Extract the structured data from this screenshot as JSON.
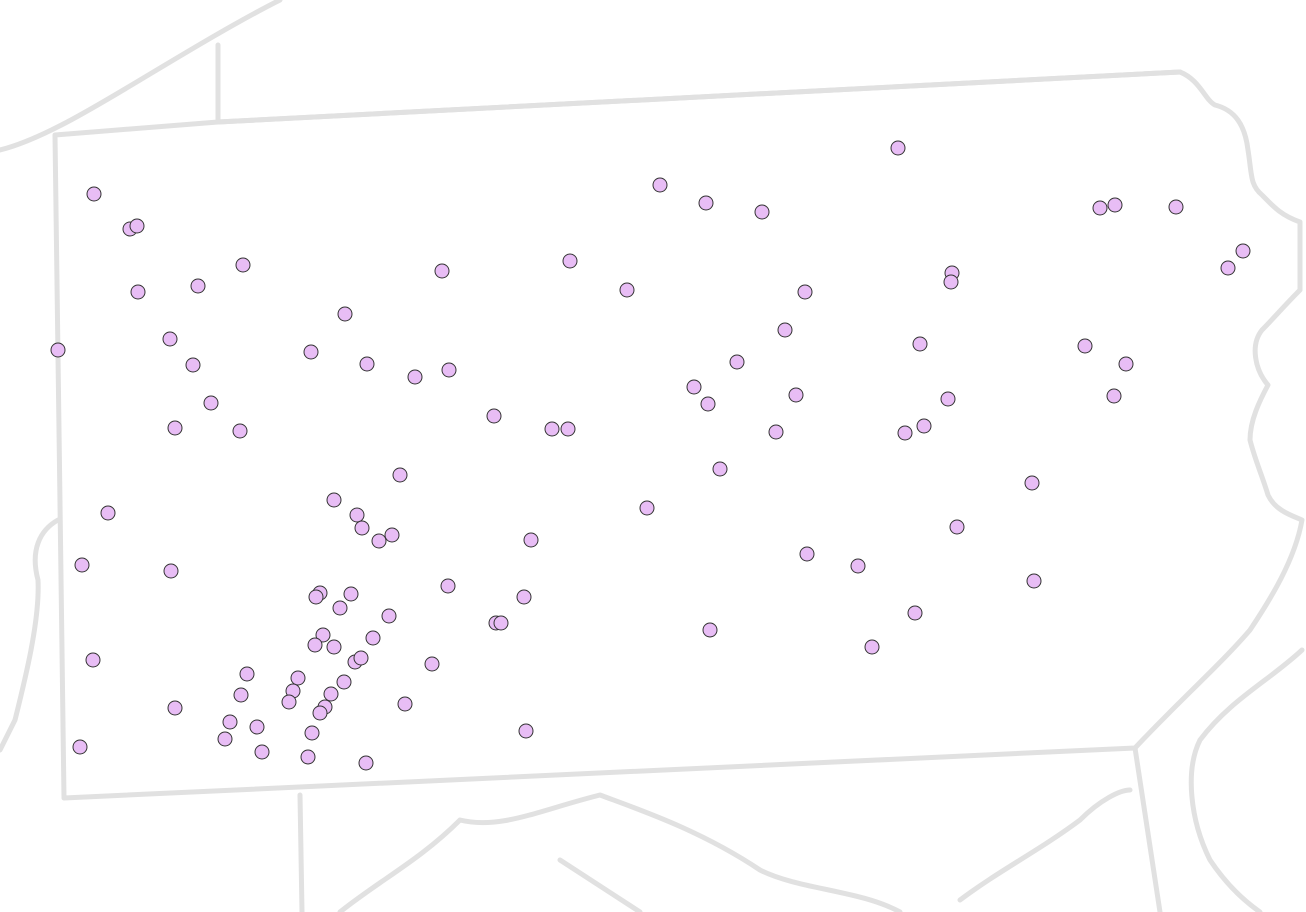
{
  "map": {
    "point_color": "#e8bdf5",
    "point_outline": "#333333"
  }
}
